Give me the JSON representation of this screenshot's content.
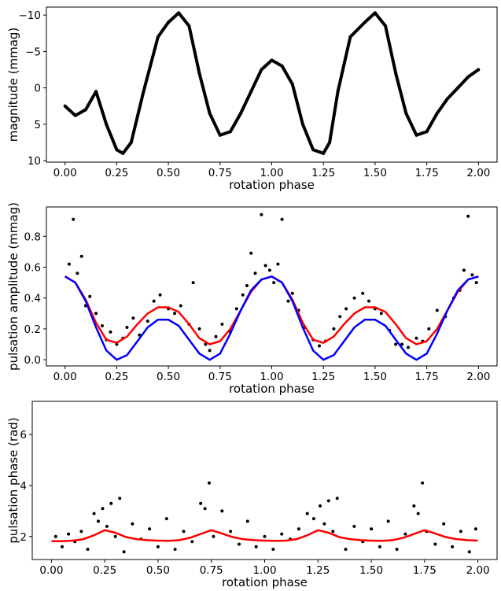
{
  "chart_data": [
    {
      "type": "scatter",
      "xlabel": "rotation phase",
      "ylabel": "magnitude (mmag)",
      "xlim": [
        -0.09,
        2.09
      ],
      "ylim": [
        10.2,
        -11.1
      ],
      "y_inverted": true,
      "xticks": [
        "0.00",
        "0.25",
        "0.50",
        "0.75",
        "1.00",
        "1.25",
        "1.50",
        "1.75",
        "2.00"
      ],
      "yticks": [
        "−10",
        "−5",
        "0",
        "5",
        "10"
      ],
      "grid": false,
      "series": [
        {
          "color": "#000000",
          "x": [
            0.0,
            0.05,
            0.1,
            0.15,
            0.2,
            0.25,
            0.28,
            0.32,
            0.38,
            0.45,
            0.5,
            0.55,
            0.6,
            0.65,
            0.7,
            0.75,
            0.8,
            0.85,
            0.9,
            0.95,
            1.0,
            1.05,
            1.1,
            1.15,
            1.2,
            1.25,
            1.28,
            1.32,
            1.38,
            1.45,
            1.5,
            1.55,
            1.6,
            1.65,
            1.7,
            1.75,
            1.8,
            1.85,
            1.9,
            1.95,
            2.0
          ],
          "y": [
            2.5,
            3.8,
            3.0,
            0.5,
            5.0,
            8.5,
            9.0,
            7.5,
            0.5,
            -7.0,
            -9.0,
            -10.3,
            -8.5,
            -2.0,
            3.5,
            6.5,
            6.0,
            3.5,
            0.5,
            -2.5,
            -3.8,
            -3.0,
            -0.5,
            5.0,
            8.5,
            9.0,
            7.5,
            0.5,
            -7.0,
            -9.0,
            -10.3,
            -8.5,
            -2.0,
            3.5,
            6.5,
            6.0,
            3.5,
            1.5,
            0.0,
            -1.5,
            -2.5
          ]
        }
      ]
    },
    {
      "type": "scatter",
      "xlabel": "rotation phase",
      "ylabel": "pulsation amplitude (mmag)",
      "xlim": [
        -0.09,
        2.09
      ],
      "ylim": [
        -0.04,
        0.99
      ],
      "xticks": [
        "0.00",
        "0.25",
        "0.50",
        "0.75",
        "1.00",
        "1.25",
        "1.50",
        "1.75",
        "2.00"
      ],
      "yticks": [
        "0.0",
        "0.2",
        "0.4",
        "0.6",
        "0.8"
      ],
      "grid": false,
      "series": [
        {
          "color": "#000000",
          "x": [
            0.02,
            0.04,
            0.06,
            0.08,
            0.1,
            0.12,
            0.15,
            0.18,
            0.2,
            0.22,
            0.25,
            0.28,
            0.3,
            0.33,
            0.36,
            0.4,
            0.43,
            0.46,
            0.5,
            0.53,
            0.56,
            0.6,
            0.62,
            0.65,
            0.68,
            0.7,
            0.73,
            0.76,
            0.8,
            0.83,
            0.86,
            0.88,
            0.9,
            0.92,
            0.95,
            0.97,
            0.99,
            1.01,
            1.03,
            1.05,
            1.08,
            1.1,
            1.13,
            1.16,
            1.2,
            1.23,
            1.26,
            1.3,
            1.33,
            1.36,
            1.4,
            1.44,
            1.47,
            1.5,
            1.53,
            1.57,
            1.6,
            1.63,
            1.66,
            1.7,
            1.73,
            1.76,
            1.8,
            1.84,
            1.88,
            1.91,
            1.93,
            1.95,
            1.97,
            1.99
          ],
          "y": [
            0.62,
            0.91,
            0.56,
            0.67,
            0.35,
            0.41,
            0.3,
            0.22,
            0.13,
            0.18,
            0.1,
            0.14,
            0.21,
            0.27,
            0.16,
            0.25,
            0.38,
            0.42,
            0.33,
            0.3,
            0.35,
            0.23,
            0.5,
            0.2,
            0.1,
            0.06,
            0.15,
            0.23,
            0.18,
            0.33,
            0.42,
            0.48,
            0.69,
            0.56,
            0.94,
            0.61,
            0.58,
            0.5,
            0.62,
            0.91,
            0.38,
            0.43,
            0.32,
            0.21,
            0.13,
            0.09,
            0.12,
            0.2,
            0.28,
            0.33,
            0.4,
            0.43,
            0.38,
            0.33,
            0.3,
            0.19,
            0.1,
            0.1,
            0.08,
            0.14,
            0.12,
            0.2,
            0.32,
            0.28,
            0.4,
            0.45,
            0.58,
            0.93,
            0.55,
            0.5
          ]
        },
        {
          "color": "#ff0000",
          "x": [
            0.0,
            0.05,
            0.1,
            0.15,
            0.2,
            0.25,
            0.3,
            0.35,
            0.4,
            0.45,
            0.5,
            0.55,
            0.6,
            0.65,
            0.7,
            0.75,
            0.8,
            0.85,
            0.9,
            0.95,
            1.0,
            1.05,
            1.1,
            1.15,
            1.2,
            1.25,
            1.3,
            1.35,
            1.4,
            1.45,
            1.5,
            1.55,
            1.6,
            1.65,
            1.7,
            1.75,
            1.8,
            1.85,
            1.9,
            1.95,
            2.0
          ],
          "y": [
            0.54,
            0.5,
            0.39,
            0.24,
            0.13,
            0.11,
            0.15,
            0.23,
            0.3,
            0.34,
            0.34,
            0.31,
            0.23,
            0.14,
            0.1,
            0.12,
            0.2,
            0.32,
            0.44,
            0.52,
            0.54,
            0.5,
            0.39,
            0.24,
            0.13,
            0.11,
            0.15,
            0.23,
            0.3,
            0.34,
            0.34,
            0.31,
            0.23,
            0.14,
            0.1,
            0.12,
            0.2,
            0.32,
            0.44,
            0.52,
            0.54
          ]
        },
        {
          "color": "#0000ff",
          "x": [
            0.0,
            0.05,
            0.1,
            0.15,
            0.2,
            0.25,
            0.3,
            0.35,
            0.4,
            0.45,
            0.5,
            0.55,
            0.6,
            0.65,
            0.7,
            0.75,
            0.8,
            0.85,
            0.9,
            0.95,
            1.0,
            1.05,
            1.1,
            1.15,
            1.2,
            1.25,
            1.3,
            1.35,
            1.4,
            1.45,
            1.5,
            1.55,
            1.6,
            1.65,
            1.7,
            1.75,
            1.8,
            1.85,
            1.9,
            1.95,
            2.0
          ],
          "y": [
            0.54,
            0.5,
            0.38,
            0.21,
            0.06,
            0.0,
            0.03,
            0.12,
            0.21,
            0.26,
            0.26,
            0.22,
            0.13,
            0.04,
            0.0,
            0.04,
            0.17,
            0.32,
            0.45,
            0.52,
            0.54,
            0.5,
            0.38,
            0.21,
            0.06,
            0.0,
            0.03,
            0.12,
            0.21,
            0.26,
            0.26,
            0.22,
            0.13,
            0.04,
            0.0,
            0.04,
            0.17,
            0.32,
            0.45,
            0.52,
            0.54
          ]
        }
      ]
    },
    {
      "type": "scatter",
      "xlabel": "rotation phase",
      "ylabel": "pulsation phase (rad)",
      "xlim": [
        -0.09,
        2.09
      ],
      "ylim": [
        1.1,
        7.3
      ],
      "xticks": [
        "0.00",
        "0.25",
        "0.50",
        "0.75",
        "1.00",
        "1.25",
        "1.50",
        "1.75",
        "2.00"
      ],
      "yticks": [
        "2",
        "4",
        "6"
      ],
      "grid": false,
      "series": [
        {
          "color": "#000000",
          "x": [
            0.02,
            0.05,
            0.08,
            0.11,
            0.14,
            0.17,
            0.2,
            0.22,
            0.24,
            0.26,
            0.28,
            0.3,
            0.32,
            0.34,
            0.38,
            0.42,
            0.46,
            0.5,
            0.54,
            0.58,
            0.62,
            0.66,
            0.7,
            0.72,
            0.74,
            0.76,
            0.8,
            0.84,
            0.88,
            0.92,
            0.96,
            1.0,
            1.04,
            1.08,
            1.12,
            1.16,
            1.2,
            1.23,
            1.26,
            1.28,
            1.3,
            1.32,
            1.34,
            1.38,
            1.42,
            1.46,
            1.5,
            1.54,
            1.58,
            1.62,
            1.66,
            1.7,
            1.72,
            1.74,
            1.76,
            1.8,
            1.84,
            1.88,
            1.92,
            1.96,
            1.99
          ],
          "y": [
            2.0,
            1.6,
            2.1,
            1.8,
            2.2,
            1.5,
            2.9,
            2.6,
            3.1,
            2.4,
            3.3,
            2.0,
            3.5,
            1.4,
            2.5,
            1.9,
            2.3,
            1.6,
            2.7,
            1.5,
            2.2,
            1.8,
            3.3,
            3.1,
            4.1,
            2.0,
            3.0,
            2.2,
            1.7,
            2.6,
            1.6,
            2.0,
            1.5,
            2.1,
            1.9,
            2.3,
            2.9,
            2.7,
            3.2,
            2.5,
            3.4,
            2.2,
            3.5,
            1.5,
            2.4,
            1.8,
            2.3,
            1.6,
            2.6,
            1.5,
            2.1,
            3.2,
            2.9,
            4.1,
            2.2,
            1.7,
            2.5,
            1.6,
            2.2,
            1.4,
            2.3
          ]
        },
        {
          "color": "#ff0000",
          "x": [
            0.0,
            0.05,
            0.1,
            0.15,
            0.2,
            0.25,
            0.3,
            0.35,
            0.4,
            0.45,
            0.5,
            0.55,
            0.6,
            0.65,
            0.7,
            0.75,
            0.8,
            0.85,
            0.9,
            0.95,
            1.0,
            1.05,
            1.1,
            1.15,
            1.2,
            1.25,
            1.3,
            1.35,
            1.4,
            1.45,
            1.5,
            1.55,
            1.6,
            1.65,
            1.7,
            1.75,
            1.8,
            1.85,
            1.9,
            1.95,
            2.0
          ],
          "y": [
            1.82,
            1.82,
            1.84,
            1.9,
            2.05,
            2.25,
            2.15,
            1.98,
            1.9,
            1.86,
            1.84,
            1.83,
            1.86,
            1.95,
            2.1,
            2.25,
            2.12,
            1.98,
            1.9,
            1.86,
            1.84,
            1.83,
            1.84,
            1.9,
            2.05,
            2.25,
            2.15,
            1.98,
            1.9,
            1.86,
            1.84,
            1.83,
            1.86,
            1.95,
            2.1,
            2.25,
            2.12,
            1.98,
            1.9,
            1.86,
            1.84
          ]
        }
      ]
    }
  ]
}
